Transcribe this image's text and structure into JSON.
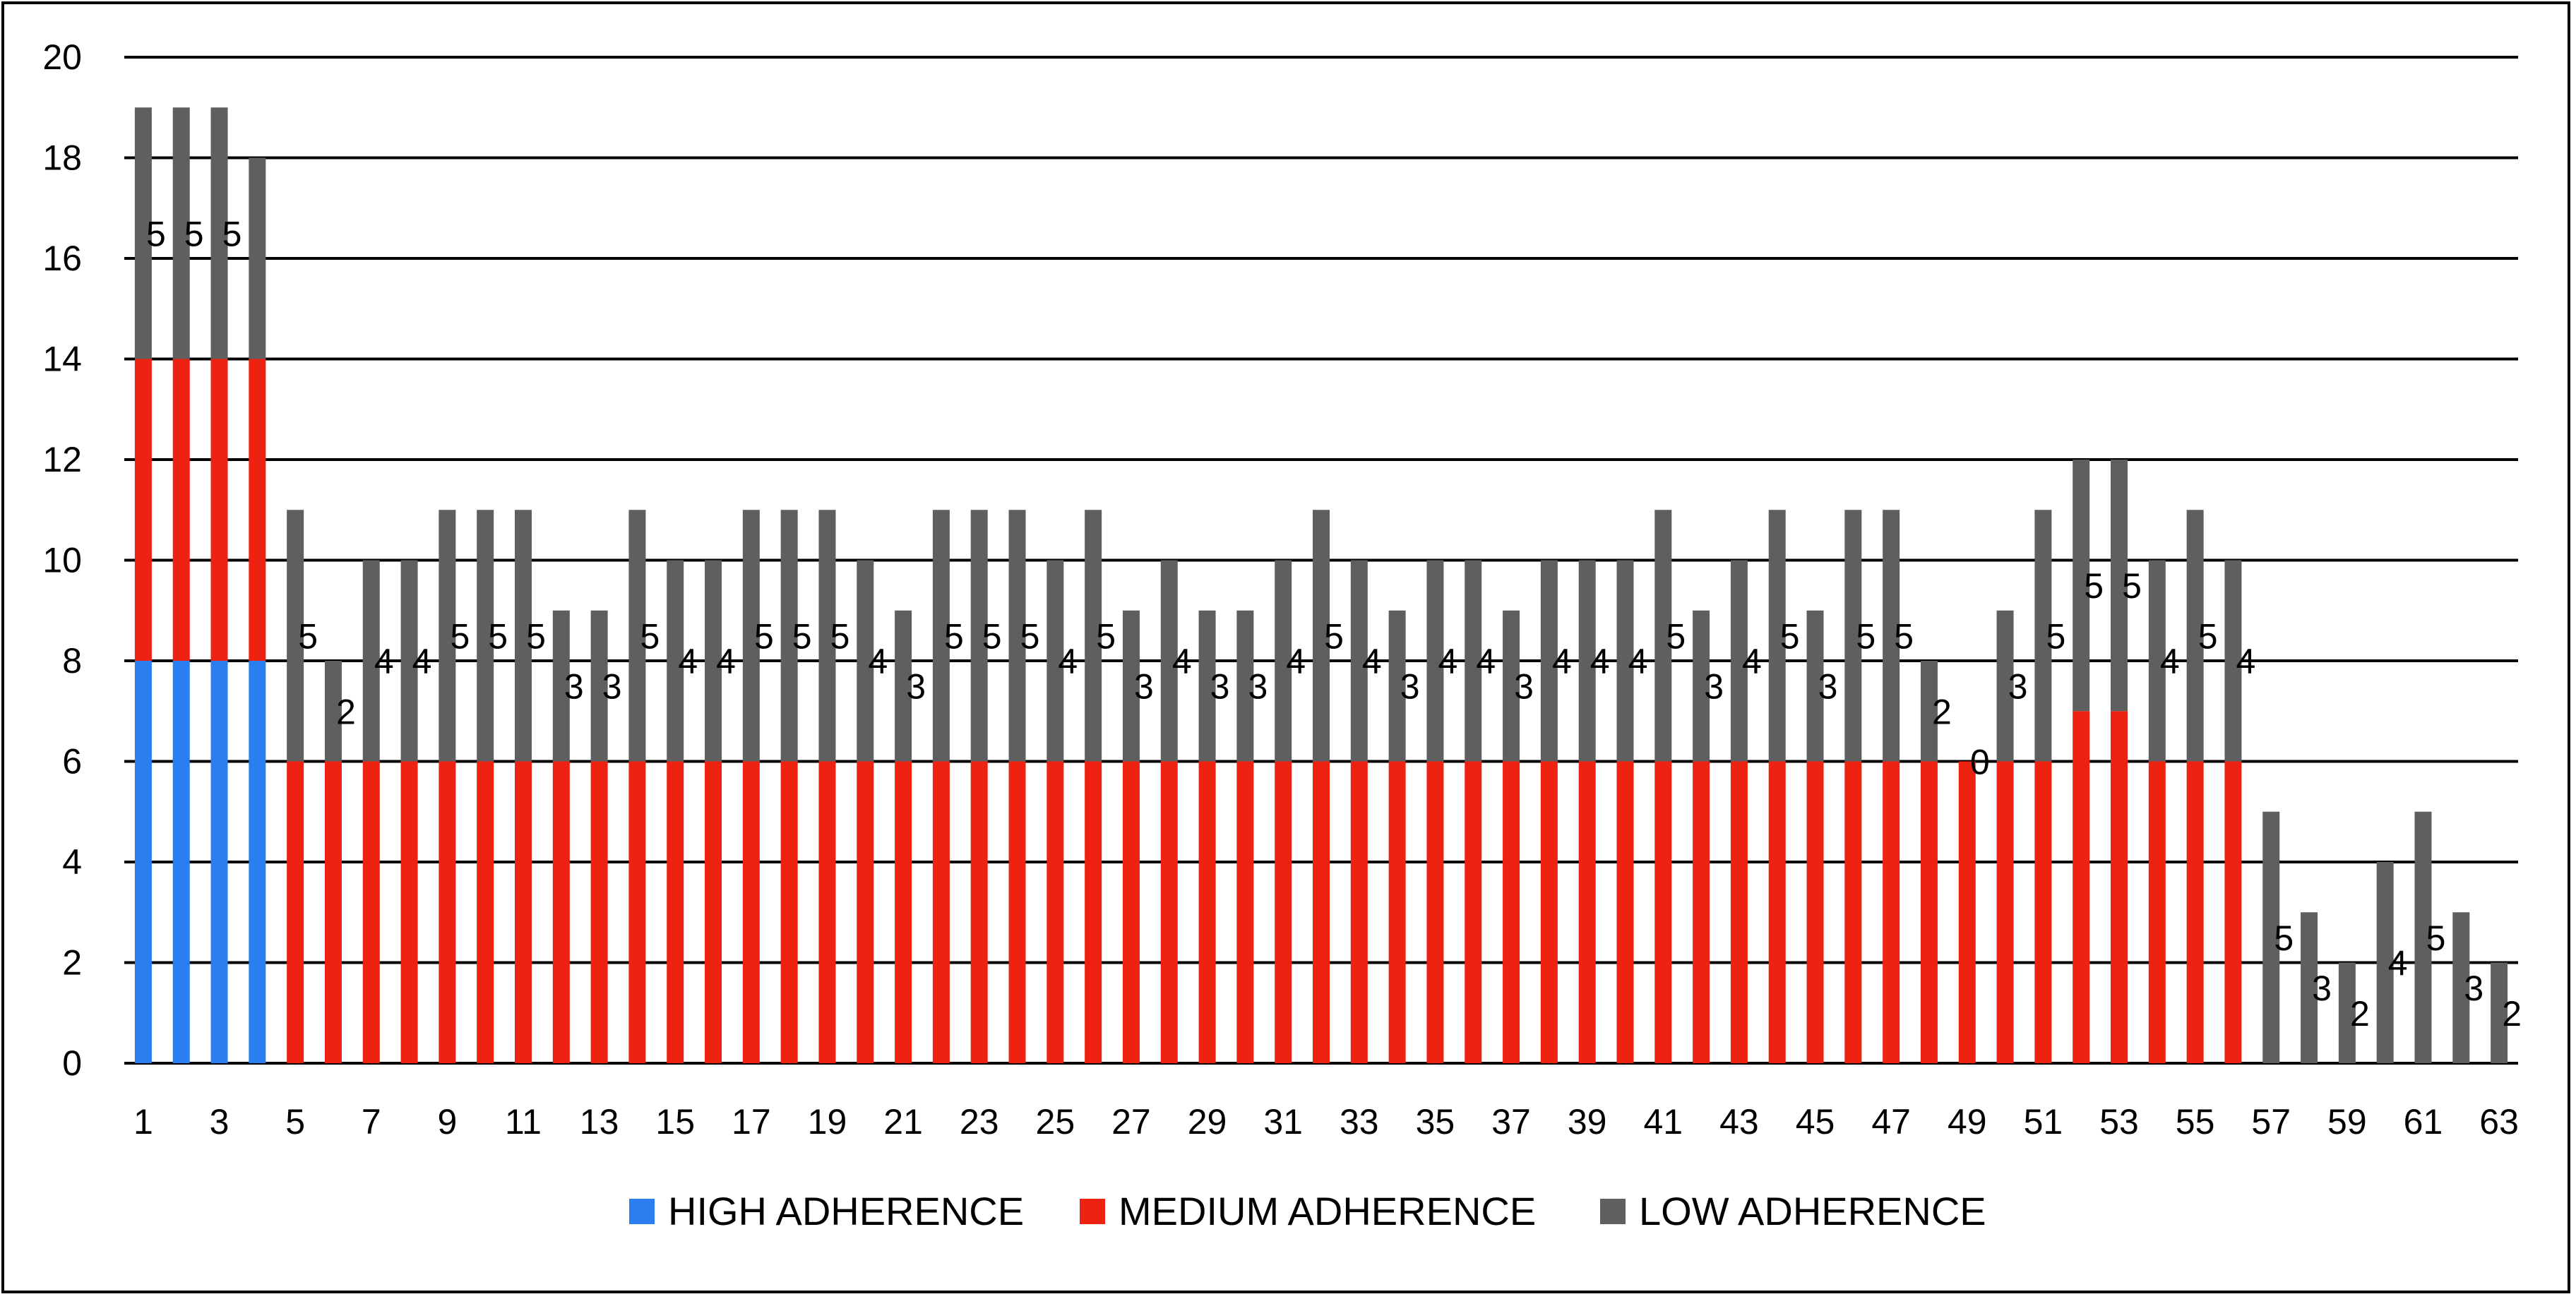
{
  "chart_data": {
    "type": "bar",
    "stacked": true,
    "title": "",
    "xlabel": "",
    "ylabel": "",
    "ylim": [
      0,
      20
    ],
    "ytick_step": 2,
    "grid": true,
    "legend_position": "bottom",
    "categories": [
      "1",
      "2",
      "3",
      "4",
      "5",
      "6",
      "7",
      "8",
      "9",
      "10",
      "11",
      "12",
      "13",
      "14",
      "15",
      "16",
      "17",
      "18",
      "19",
      "20",
      "21",
      "22",
      "23",
      "24",
      "25",
      "26",
      "27",
      "28",
      "29",
      "30",
      "31",
      "32",
      "33",
      "34",
      "35",
      "36",
      "37",
      "38",
      "39",
      "40",
      "41",
      "42",
      "43",
      "44",
      "45",
      "46",
      "47",
      "48",
      "49",
      "50",
      "51",
      "52",
      "53",
      "54",
      "55",
      "56",
      "57",
      "58",
      "59",
      "60",
      "61",
      "62",
      "63"
    ],
    "xtick_labels": [
      "1",
      "3",
      "5",
      "7",
      "9",
      "11",
      "13",
      "15",
      "17",
      "19",
      "21",
      "23",
      "25",
      "27",
      "29",
      "31",
      "33",
      "35",
      "37",
      "39",
      "41",
      "43",
      "45",
      "47",
      "49",
      "51",
      "53",
      "55",
      "57",
      "59",
      "61",
      "63"
    ],
    "series": [
      {
        "name": "HIGH ADHERENCE",
        "color": "#2b7ef0",
        "values": [
          8,
          8,
          8,
          8,
          0,
          0,
          0,
          0,
          0,
          0,
          0,
          0,
          0,
          0,
          0,
          0,
          0,
          0,
          0,
          0,
          0,
          0,
          0,
          0,
          0,
          0,
          0,
          0,
          0,
          0,
          0,
          0,
          0,
          0,
          0,
          0,
          0,
          0,
          0,
          0,
          0,
          0,
          0,
          0,
          0,
          0,
          0,
          0,
          0,
          0,
          0,
          0,
          0,
          0,
          0,
          0,
          0,
          0,
          0,
          0,
          0,
          0,
          0
        ]
      },
      {
        "name": "MEDIUM ADHERENCE",
        "color": "#ee2211",
        "values": [
          6,
          6,
          6,
          6,
          6,
          6,
          6,
          6,
          6,
          6,
          6,
          6,
          6,
          6,
          6,
          6,
          6,
          6,
          6,
          6,
          6,
          6,
          6,
          6,
          6,
          6,
          6,
          6,
          6,
          6,
          6,
          6,
          6,
          6,
          6,
          6,
          6,
          6,
          6,
          6,
          6,
          6,
          6,
          6,
          6,
          6,
          6,
          6,
          6,
          6,
          6,
          7,
          7,
          6,
          6,
          6,
          0,
          0,
          0,
          0,
          0,
          0,
          0
        ]
      },
      {
        "name": "LOW ADHERENCE",
        "color": "#5f5f5f",
        "values": [
          5,
          5,
          5,
          4,
          5,
          2,
          4,
          4,
          5,
          5,
          5,
          3,
          3,
          5,
          4,
          4,
          5,
          5,
          5,
          4,
          3,
          5,
          5,
          5,
          4,
          5,
          3,
          4,
          3,
          3,
          4,
          5,
          4,
          3,
          4,
          4,
          3,
          4,
          4,
          4,
          5,
          3,
          4,
          5,
          3,
          5,
          5,
          2,
          0,
          3,
          5,
          5,
          5,
          4,
          5,
          4,
          5,
          3,
          2,
          4,
          5,
          3,
          2
        ]
      }
    ],
    "data_labels": [
      "5",
      "5",
      "5",
      "",
      "5",
      "2",
      "4",
      "4",
      "5",
      "5",
      "5",
      "3",
      "3",
      "5",
      "4",
      "4",
      "5",
      "5",
      "5",
      "4",
      "3",
      "5",
      "5",
      "5",
      "4",
      "5",
      "3",
      "4",
      "3",
      "3",
      "4",
      "5",
      "4",
      "3",
      "4",
      "4",
      "3",
      "4",
      "4",
      "4",
      "5",
      "3",
      "4",
      "5",
      "3",
      "5",
      "5",
      "2",
      "0",
      "3",
      "5",
      "5",
      "5",
      "4",
      "5",
      "4",
      "5",
      "3",
      "2",
      "4",
      "5",
      "3",
      "2"
    ]
  }
}
